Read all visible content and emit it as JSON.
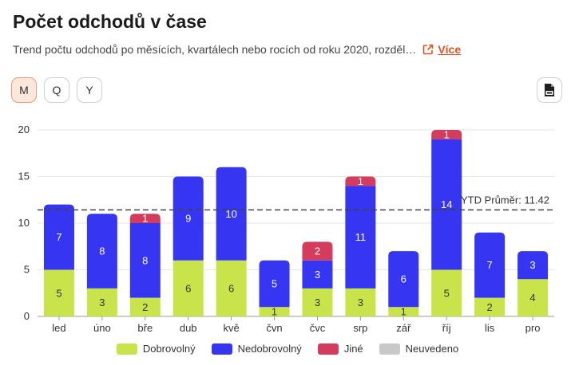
{
  "header": {
    "title": "Počet odchodů v čase",
    "subtitle": "Trend počtu odchodů po měsících, kvartálech nebo rocích od roku 2020, rozděl…",
    "more_label": "Více"
  },
  "period_buttons": [
    {
      "label": "M",
      "active": true
    },
    {
      "label": "Q",
      "active": false
    },
    {
      "label": "Y",
      "active": false
    }
  ],
  "export_icon": "jpg-file-icon",
  "colors": {
    "accent": "#e0531f",
    "grid": "#e6e6e6",
    "avg_line": "#444444"
  },
  "chart_data": {
    "type": "bar",
    "stacked": true,
    "categories": [
      "led",
      "úno",
      "bře",
      "dub",
      "kvě",
      "čvn",
      "čvc",
      "srp",
      "zář",
      "říj",
      "lis",
      "pro"
    ],
    "series": [
      {
        "name": "Dobrovolný",
        "color": "#c9e34a",
        "label_color": "#333333",
        "values": [
          5,
          3,
          2,
          6,
          6,
          1,
          3,
          3,
          1,
          5,
          2,
          4
        ]
      },
      {
        "name": "Nedobrovolný",
        "color": "#3535f2",
        "label_color": "#ffffff",
        "values": [
          7,
          8,
          8,
          9,
          10,
          5,
          3,
          11,
          6,
          14,
          7,
          3
        ]
      },
      {
        "name": "Jiné",
        "color": "#d43c5e",
        "label_color": "#ffffff",
        "values": [
          0,
          0,
          1,
          0,
          0,
          0,
          2,
          1,
          0,
          1,
          0,
          0
        ]
      },
      {
        "name": "Neuvedeno",
        "color": "#c8c8c8",
        "label_color": "#333333",
        "values": [
          0,
          0,
          0,
          0,
          0,
          0,
          0,
          0,
          0,
          0,
          0,
          0
        ]
      }
    ],
    "ylim": [
      0,
      20
    ],
    "yticks": [
      0,
      5,
      10,
      15,
      20
    ],
    "grid": true,
    "reference_line": {
      "label": "YTD Průměr: 11.42",
      "value": 11.42
    },
    "legend_position": "bottom"
  }
}
